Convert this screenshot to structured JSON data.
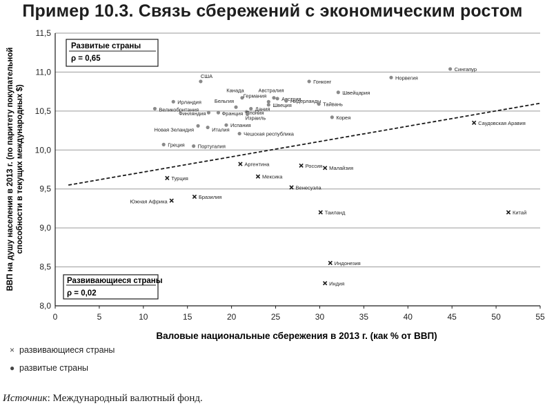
{
  "title": "Пример 10.3. Связь сбережений с экономическим ростом",
  "source_label": "Источник",
  "source_text": ": Международный валютный фонд.",
  "chart_data": {
    "type": "scatter",
    "xlabel": "Валовые национальные сбережения в 2013 г. (как % от ВВП)",
    "ylabel_line1": "ВВП на душу населения в 2013 г. (по паритету покупательной",
    "ylabel_line2": "способности в текущих международных $)",
    "xlim": [
      0,
      55
    ],
    "ylim": [
      8.0,
      11.5
    ],
    "x_ticks": [
      0,
      5,
      10,
      15,
      20,
      25,
      30,
      35,
      40,
      45,
      50,
      55
    ],
    "y_ticks": [
      8.0,
      8.5,
      9.0,
      9.5,
      10.0,
      10.5,
      11.0,
      11.5
    ],
    "y_tick_labels": [
      "8,0",
      "8,5",
      "9,0",
      "9,5",
      "10,0",
      "10,5",
      "11,0",
      "11,5"
    ],
    "grid": "horizontal",
    "trendline": {
      "x": [
        1.5,
        55
      ],
      "y": [
        9.55,
        10.6
      ]
    },
    "boxes": {
      "developed": {
        "title": "Развитые страны",
        "rho": "ρ = 0,65"
      },
      "developing": {
        "title": "Развивающиеся страны",
        "rho": "ρ = 0,02"
      }
    },
    "legend": {
      "developing": "развивающиеся страны",
      "developed": "развитые страны"
    },
    "series": [
      {
        "name": "развитые страны",
        "marker": "dot",
        "color": "#8a8a8a",
        "points": [
          {
            "label": "Сингапур",
            "x": 44.8,
            "y": 11.04
          },
          {
            "label": "Норвегия",
            "x": 38.1,
            "y": 10.93
          },
          {
            "label": "США",
            "x": 16.5,
            "y": 10.88
          },
          {
            "label": "Гонконг",
            "x": 28.8,
            "y": 10.88
          },
          {
            "label": "Швейцария",
            "x": 32.1,
            "y": 10.74
          },
          {
            "label": "Австралия",
            "x": 24.8,
            "y": 10.67
          },
          {
            "label": "Канада",
            "x": 21.2,
            "y": 10.67
          },
          {
            "label": "Австрия",
            "x": 25.2,
            "y": 10.66
          },
          {
            "label": "Нидерланды",
            "x": 26.2,
            "y": 10.63
          },
          {
            "label": "Германия",
            "x": 24.2,
            "y": 10.62
          },
          {
            "label": "Ирландия",
            "x": 13.4,
            "y": 10.62
          },
          {
            "label": "Тайвань",
            "x": 29.9,
            "y": 10.59
          },
          {
            "label": "Швеция",
            "x": 24.2,
            "y": 10.58
          },
          {
            "label": "Бельгия",
            "x": 20.5,
            "y": 10.55
          },
          {
            "label": "Великобритания",
            "x": 11.3,
            "y": 10.53
          },
          {
            "label": "Дания",
            "x": 22.2,
            "y": 10.53
          },
          {
            "label": "Япония",
            "x": 21.7,
            "y": 10.49
          },
          {
            "label": "Финляндия",
            "x": 17.4,
            "y": 10.48
          },
          {
            "label": "Франция",
            "x": 18.5,
            "y": 10.48
          },
          {
            "label": "Израиль",
            "x": 21.8,
            "y": 10.46
          },
          {
            "label": "Корея",
            "x": 31.4,
            "y": 10.42
          },
          {
            "label": "Испания",
            "x": 19.4,
            "y": 10.32
          },
          {
            "label": "Новая Зеландия",
            "x": 16.2,
            "y": 10.31
          },
          {
            "label": "Италия",
            "x": 17.3,
            "y": 10.29
          },
          {
            "label": "Чешская республика",
            "x": 20.9,
            "y": 10.21
          },
          {
            "label": "Греция",
            "x": 12.3,
            "y": 10.07
          },
          {
            "label": "Португалия",
            "x": 15.7,
            "y": 10.05
          }
        ]
      },
      {
        "name": "развивающиеся страны",
        "marker": "cross",
        "color": "#1a1a1a",
        "points": [
          {
            "label": "Саудовская Аравия",
            "x": 47.5,
            "y": 10.35
          },
          {
            "label": "Аргентина",
            "x": 21.0,
            "y": 9.82
          },
          {
            "label": "Россия",
            "x": 27.9,
            "y": 9.8
          },
          {
            "label": "Малайзия",
            "x": 30.6,
            "y": 9.77
          },
          {
            "label": "Мексика",
            "x": 23.0,
            "y": 9.66
          },
          {
            "label": "Турция",
            "x": 12.7,
            "y": 9.64
          },
          {
            "label": "Венесуэла",
            "x": 26.8,
            "y": 9.52
          },
          {
            "label": "Бразилия",
            "x": 15.8,
            "y": 9.4
          },
          {
            "label": "Южная Африка",
            "x": 13.2,
            "y": 9.35
          },
          {
            "label": "Таиланд",
            "x": 30.1,
            "y": 9.2
          },
          {
            "label": "Китай",
            "x": 51.4,
            "y": 9.2
          },
          {
            "label": "Индонезия",
            "x": 31.2,
            "y": 8.55
          },
          {
            "label": "Индия",
            "x": 30.6,
            "y": 8.29
          }
        ]
      }
    ]
  }
}
